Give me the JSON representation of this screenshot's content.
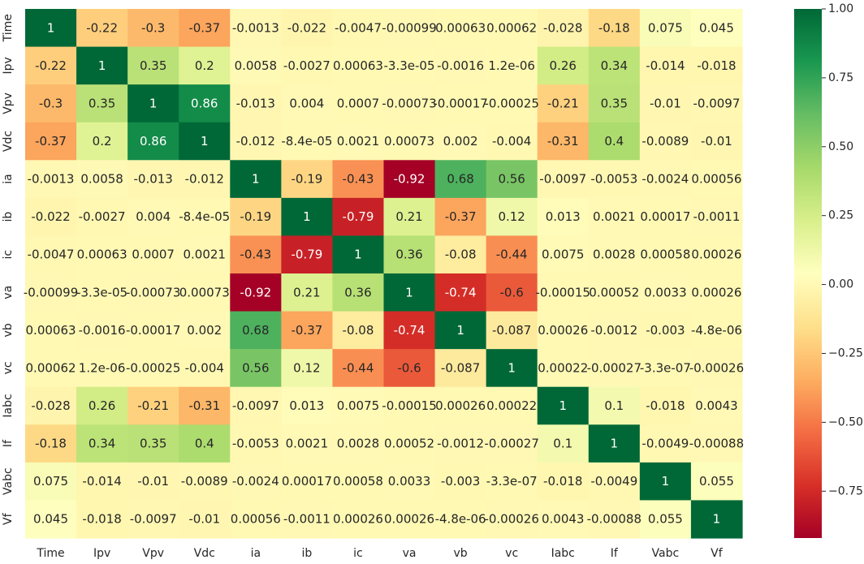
{
  "chart_data": {
    "type": "heatmap",
    "title": "",
    "xlabel": "",
    "ylabel": "",
    "colormap": "RdYlGn",
    "colormap_stops": [
      "#a50026",
      "#d73027",
      "#f46d43",
      "#fdae61",
      "#fee08b",
      "#ffffbf",
      "#d9ef8b",
      "#a6d96a",
      "#66bd63",
      "#1a9850",
      "#006837"
    ],
    "value_range": [
      -0.92,
      1
    ],
    "labels": [
      "Time",
      "Ipv",
      "Vpv",
      "Vdc",
      "ia",
      "ib",
      "ic",
      "va",
      "vb",
      "vc",
      "Iabc",
      "If",
      "Vabc",
      "Vf"
    ],
    "values": [
      [
        1,
        -0.22,
        -0.3,
        -0.37,
        -0.0013,
        -0.022,
        -0.0047,
        -0.00099,
        0.00063,
        0.00062,
        -0.028,
        -0.18,
        0.075,
        0.045
      ],
      [
        -0.22,
        1,
        0.35,
        0.2,
        0.0058,
        -0.0027,
        0.00063,
        -3.3e-05,
        -0.0016,
        1.2e-06,
        0.26,
        0.34,
        -0.014,
        -0.018
      ],
      [
        -0.3,
        0.35,
        1,
        0.86,
        -0.013,
        0.004,
        0.0007,
        -0.00073,
        -0.00017,
        -0.00025,
        -0.21,
        0.35,
        -0.01,
        -0.0097
      ],
      [
        -0.37,
        0.2,
        0.86,
        1,
        -0.012,
        -8.4e-05,
        0.0021,
        0.00073,
        0.002,
        -0.004,
        -0.31,
        0.4,
        -0.0089,
        -0.01
      ],
      [
        -0.0013,
        0.0058,
        -0.013,
        -0.012,
        1,
        -0.19,
        -0.43,
        -0.92,
        0.68,
        0.56,
        -0.0097,
        -0.0053,
        -0.0024,
        0.00056
      ],
      [
        -0.022,
        -0.0027,
        0.004,
        -8.4e-05,
        -0.19,
        1,
        -0.79,
        0.21,
        -0.37,
        0.12,
        0.013,
        0.0021,
        0.00017,
        -0.0011
      ],
      [
        -0.0047,
        0.00063,
        0.0007,
        0.0021,
        -0.43,
        -0.79,
        1,
        0.36,
        -0.08,
        -0.44,
        0.0075,
        0.0028,
        0.00058,
        0.00026
      ],
      [
        -0.00099,
        -3.3e-05,
        -0.00073,
        0.00073,
        -0.92,
        0.21,
        0.36,
        1,
        -0.74,
        -0.6,
        -0.00015,
        0.00052,
        0.0033,
        0.00026
      ],
      [
        0.00063,
        -0.0016,
        -0.00017,
        0.002,
        0.68,
        -0.37,
        -0.08,
        -0.74,
        1,
        -0.087,
        0.00026,
        -0.0012,
        -0.003,
        -4.8e-06
      ],
      [
        0.00062,
        1.2e-06,
        -0.00025,
        -0.004,
        0.56,
        0.12,
        -0.44,
        -0.6,
        -0.087,
        1,
        0.00022,
        -0.00027,
        -3.3e-07,
        -0.00026
      ],
      [
        -0.028,
        0.26,
        -0.21,
        -0.31,
        -0.0097,
        0.013,
        0.0075,
        -0.00015,
        0.00026,
        0.00022,
        1,
        0.1,
        -0.018,
        0.0043
      ],
      [
        -0.18,
        0.34,
        0.35,
        0.4,
        -0.0053,
        0.0021,
        0.0028,
        0.00052,
        -0.0012,
        -0.00027,
        0.1,
        1,
        -0.0049,
        -0.00088
      ],
      [
        0.075,
        -0.014,
        -0.01,
        -0.0089,
        -0.0024,
        0.00017,
        0.00058,
        0.0033,
        -0.003,
        -3.3e-07,
        -0.018,
        -0.0049,
        1,
        0.055
      ],
      [
        0.045,
        -0.018,
        -0.0097,
        -0.01,
        0.00056,
        -0.0011,
        0.00026,
        0.00026,
        -4.8e-06,
        -0.00026,
        0.0043,
        -0.00088,
        0.055,
        1
      ]
    ],
    "annotations": [
      [
        "1",
        "-0.22",
        "-0.3",
        "-0.37",
        "-0.0013",
        "-0.022",
        "-0.0047",
        "-0.00099",
        "0.00063",
        "0.00062",
        "-0.028",
        "-0.18",
        "0.075",
        "0.045"
      ],
      [
        "-0.22",
        "1",
        "0.35",
        "0.2",
        "0.0058",
        "-0.0027",
        "0.00063",
        "-3.3e-05",
        "-0.0016",
        "1.2e-06",
        "0.26",
        "0.34",
        "-0.014",
        "-0.018"
      ],
      [
        "-0.3",
        "0.35",
        "1",
        "0.86",
        "-0.013",
        "0.004",
        "0.0007",
        "-0.00073",
        "-0.00017",
        "-0.00025",
        "-0.21",
        "0.35",
        "-0.01",
        "-0.0097"
      ],
      [
        "-0.37",
        "0.2",
        "0.86",
        "1",
        "-0.012",
        "-8.4e-05",
        "0.0021",
        "0.00073",
        "0.002",
        "-0.004",
        "-0.31",
        "0.4",
        "-0.0089",
        "-0.01"
      ],
      [
        "-0.0013",
        "0.0058",
        "-0.013",
        "-0.012",
        "1",
        "-0.19",
        "-0.43",
        "-0.92",
        "0.68",
        "0.56",
        "-0.0097",
        "-0.0053",
        "-0.0024",
        "0.00056"
      ],
      [
        "-0.022",
        "-0.0027",
        "0.004",
        "-8.4e-05",
        "-0.19",
        "1",
        "-0.79",
        "0.21",
        "-0.37",
        "0.12",
        "0.013",
        "0.0021",
        "0.00017",
        "-0.0011"
      ],
      [
        "-0.0047",
        "0.00063",
        "0.0007",
        "0.0021",
        "-0.43",
        "-0.79",
        "1",
        "0.36",
        "-0.08",
        "-0.44",
        "0.0075",
        "0.0028",
        "0.00058",
        "0.00026"
      ],
      [
        "-0.00099",
        "-3.3e-05",
        "-0.00073",
        "0.00073",
        "-0.92",
        "0.21",
        "0.36",
        "1",
        "-0.74",
        "-0.6",
        "-0.00015",
        "0.00052",
        "0.0033",
        "0.00026"
      ],
      [
        "0.00063",
        "-0.0016",
        "-0.00017",
        "0.002",
        "0.68",
        "-0.37",
        "-0.08",
        "-0.74",
        "1",
        "-0.087",
        "0.00026",
        "-0.0012",
        "-0.003",
        "-4.8e-06"
      ],
      [
        "0.00062",
        "1.2e-06",
        "-0.00025",
        "-0.004",
        "0.56",
        "0.12",
        "-0.44",
        "-0.6",
        "-0.087",
        "1",
        "0.00022",
        "-0.00027",
        "-3.3e-07",
        "-0.00026"
      ],
      [
        "-0.028",
        "0.26",
        "-0.21",
        "-0.31",
        "-0.0097",
        "0.013",
        "0.0075",
        "-0.00015",
        "0.00026",
        "0.00022",
        "1",
        "0.1",
        "-0.018",
        "0.0043"
      ],
      [
        "-0.18",
        "0.34",
        "0.35",
        "0.4",
        "-0.0053",
        "0.0021",
        "0.0028",
        "0.00052",
        "-0.0012",
        "-0.00027",
        "0.1",
        "1",
        "-0.0049",
        "-0.00088"
      ],
      [
        "0.075",
        "-0.014",
        "-0.01",
        "-0.0089",
        "-0.0024",
        "0.00017",
        "0.00058",
        "0.0033",
        "-0.003",
        "-3.3e-07",
        "-0.018",
        "-0.0049",
        "1",
        "0.055"
      ],
      [
        "0.045",
        "-0.018",
        "-0.0097",
        "-0.01",
        "0.00056",
        "-0.0011",
        "0.00026",
        "0.00026",
        "-4.8e-06",
        "-0.00026",
        "0.0043",
        "-0.00088",
        "0.055",
        "1"
      ]
    ],
    "colorbar": {
      "range": [
        -0.92,
        1
      ],
      "ticks": [
        -0.75,
        -0.5,
        -0.25,
        0,
        0.25,
        0.5,
        0.75,
        1
      ],
      "tick_labels": [
        "−0.75",
        "−0.50",
        "−0.25",
        "0.00",
        "0.25",
        "0.50",
        "0.75",
        "1.00"
      ]
    },
    "grid": false,
    "legend": "colorbar-right"
  }
}
